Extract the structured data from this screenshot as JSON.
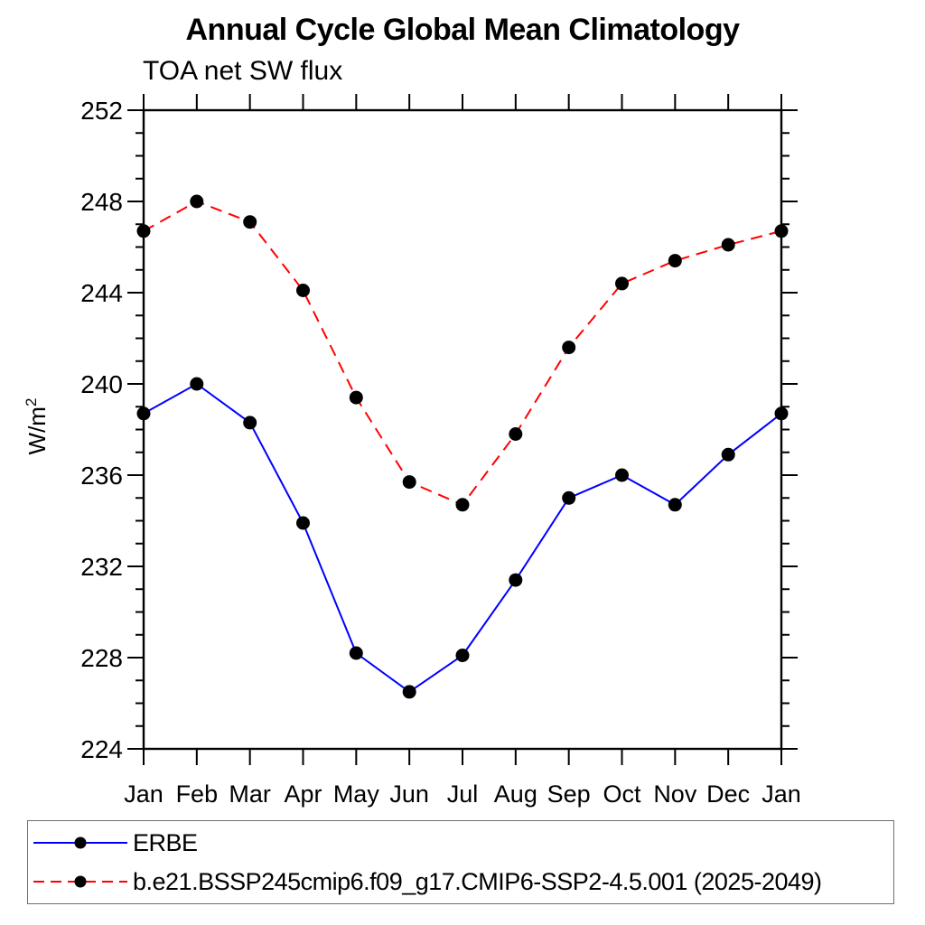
{
  "title": "Annual Cycle Global Mean Climatology",
  "subtitle": "TOA net SW flux",
  "chart_data": {
    "type": "line",
    "title": "Annual Cycle Global Mean Climatology",
    "subtitle": "TOA net SW flux",
    "categories": [
      "Jan",
      "Feb",
      "Mar",
      "Apr",
      "May",
      "Jun",
      "Jul",
      "Aug",
      "Sep",
      "Oct",
      "Nov",
      "Dec",
      "Jan"
    ],
    "ylabel": "W/m2",
    "ylabel_base": "W/m",
    "ylabel_sup": "2",
    "ylim": [
      224,
      252
    ],
    "ytick_major_step": 4,
    "ytick_minor_step": 1,
    "ytick_labels": [
      "224",
      "228",
      "232",
      "236",
      "240",
      "244",
      "248",
      "252"
    ],
    "grid": false,
    "legend_position": "bottom-left-box",
    "axis_color": "#000000",
    "marker_color": "#000000",
    "series": [
      {
        "id": "erbe",
        "name": "ERBE",
        "color": "#0000ff",
        "line_style": "solid",
        "marker": "filled-circle",
        "values": [
          238.7,
          240.0,
          238.3,
          233.9,
          228.2,
          226.5,
          228.1,
          231.4,
          235.0,
          236.0,
          234.7,
          236.9,
          238.7
        ]
      },
      {
        "id": "model",
        "name": "b.e21.BSSP245cmip6.f09_g17.CMIP6-SSP2-4.5.001 (2025-2049)",
        "color": "#ff0000",
        "line_style": "dashed",
        "marker": "filled-circle",
        "values": [
          246.7,
          248.0,
          247.1,
          244.1,
          239.4,
          235.7,
          234.7,
          237.8,
          241.6,
          244.4,
          245.4,
          246.1,
          246.7
        ]
      }
    ]
  }
}
